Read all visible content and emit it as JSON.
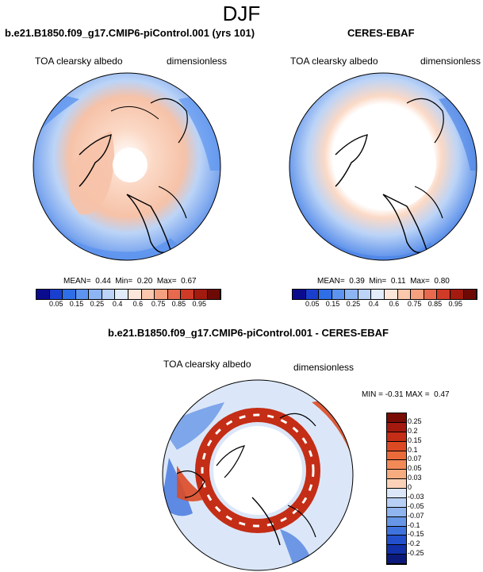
{
  "page_title": "DJF",
  "panels": [
    {
      "case_name": "b.e21.B1850.f09_g17.CMIP6-piControl.001 (yrs 101)",
      "variable": "TOA clearsky albedo",
      "units": "dimensionless",
      "stats_text": "MEAN=  0.44  Min=  0.20  Max=  0.67"
    },
    {
      "case_name": "CERES-EBAF",
      "variable": "TOA clearsky albedo",
      "units": "dimensionless",
      "stats_text": "MEAN=  0.39  Min=  0.11  Max=  0.80"
    },
    {
      "case_name": "b.e21.B1850.f09_g17.CMIP6-piControl.001 - CERES-EBAF",
      "variable": "TOA clearsky albedo",
      "units": "dimensionless",
      "stats_text": "MIN = -0.31 MAX =  0.47"
    }
  ],
  "colorbar_abs": {
    "labels": [
      "0.05",
      "0.15",
      "0.25",
      "0.4",
      "0.6",
      "0.75",
      "0.85",
      "0.95"
    ],
    "colors": [
      "#0b0b8e",
      "#1a3fcf",
      "#2e6ee6",
      "#5d94ef",
      "#8eb5f3",
      "#bcd4f7",
      "#e2ecfb",
      "#fde7da",
      "#fbc7ad",
      "#f5a07f",
      "#e86a4e",
      "#cf3b26",
      "#a31a0f",
      "#6e0a05"
    ]
  },
  "colorbar_diff": {
    "labels": [
      "0.25",
      "0.2",
      "0.15",
      "0.1",
      "0.07",
      "0.05",
      "0.03",
      "0",
      "-0.03",
      "-0.05",
      "-0.07",
      "-0.1",
      "-0.15",
      "-0.2",
      "-0.25"
    ],
    "colors": [
      "#7a0c06",
      "#a41a0e",
      "#c42d16",
      "#dc4a24",
      "#ea6a3a",
      "#f28a58",
      "#f7ac80",
      "#fbd2b8",
      "#dbe7f8",
      "#b7cff4",
      "#8fb4ee",
      "#6796e6",
      "#3f73dd",
      "#2350cc",
      "#1230a8",
      "#0b1a7a"
    ]
  }
}
